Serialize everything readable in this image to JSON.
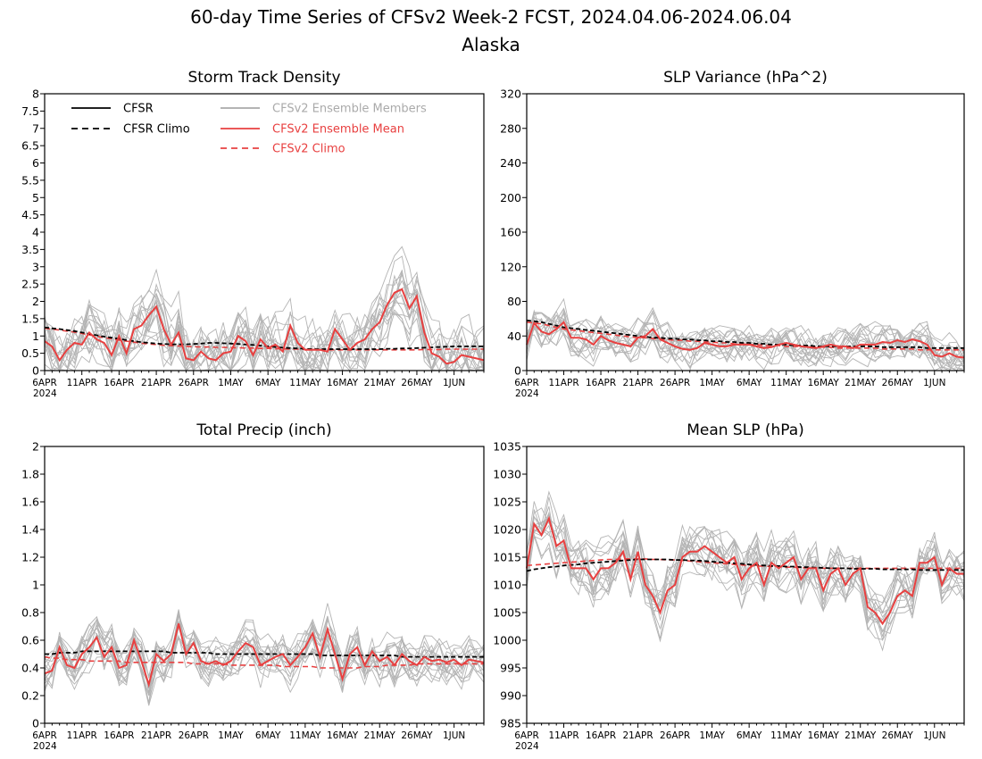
{
  "page": {
    "title": "60-day Time Series of CFSv2 Week-2 FCST, 2024.04.06-2024.06.04",
    "subtitle": "Alaska"
  },
  "legend": [
    {
      "label": "CFSR",
      "color": "#000000",
      "dash": false
    },
    {
      "label": "CFSR Climo",
      "color": "#000000",
      "dash": true
    },
    {
      "label": "CFSv2 Ensemble Members",
      "color": "#aaaaaa",
      "dash": false
    },
    {
      "label": "CFSv2 Ensemble Mean",
      "color": "#e84040",
      "dash": false
    },
    {
      "label": "CFSv2 Climo",
      "color": "#e84040",
      "dash": true
    }
  ],
  "colors": {
    "members": "#b4b4b4",
    "mean": "#e84040",
    "cfsr": "#000000"
  },
  "x_ticks": [
    "6APR",
    "11APR",
    "16APR",
    "21APR",
    "26APR",
    "1MAY",
    "6MAY",
    "11MAY",
    "16MAY",
    "21MAY",
    "26MAY",
    "1JUN"
  ],
  "year_label": "2024",
  "chart_data": [
    {
      "type": "line",
      "title": "Storm Track Density",
      "ylim": [
        0,
        8
      ],
      "yticks": [
        0,
        0.5,
        1,
        1.5,
        2,
        2.5,
        3,
        3.5,
        4,
        4.5,
        5,
        5.5,
        6,
        6.5,
        7,
        7.5,
        8
      ],
      "series": [
        {
          "name": "CFSv2 Ensemble Mean",
          "values": [
            0.85,
            0.7,
            0.3,
            0.6,
            0.8,
            0.75,
            1.1,
            0.9,
            0.8,
            0.45,
            1.0,
            0.5,
            1.2,
            1.3,
            1.6,
            1.85,
            1.2,
            0.75,
            1.1,
            0.35,
            0.3,
            0.55,
            0.35,
            0.3,
            0.5,
            0.55,
            1.0,
            0.85,
            0.45,
            0.9,
            0.65,
            0.75,
            0.55,
            1.3,
            0.8,
            0.6,
            0.6,
            0.6,
            0.55,
            1.2,
            0.9,
            0.6,
            0.8,
            0.9,
            1.2,
            1.4,
            1.9,
            2.25,
            2.35,
            1.8,
            2.15,
            1.1,
            0.5,
            0.4,
            0.2,
            0.25,
            0.45,
            0.4,
            0.35,
            0.3
          ]
        },
        {
          "name": "CFSR Climo",
          "values": [
            1.25,
            1.22,
            1.2,
            1.17,
            1.14,
            1.1,
            1.06,
            1.02,
            0.98,
            0.95,
            0.92,
            0.88,
            0.85,
            0.82,
            0.8,
            0.78,
            0.77,
            0.76,
            0.76,
            0.76,
            0.77,
            0.78,
            0.8,
            0.8,
            0.79,
            0.78,
            0.77,
            0.75,
            0.74,
            0.72,
            0.7,
            0.68,
            0.66,
            0.65,
            0.64,
            0.63,
            0.62,
            0.62,
            0.62,
            0.62,
            0.62,
            0.62,
            0.62,
            0.62,
            0.62,
            0.62,
            0.63,
            0.63,
            0.64,
            0.64,
            0.65,
            0.66,
            0.67,
            0.68,
            0.69,
            0.7,
            0.7,
            0.7,
            0.7,
            0.7
          ]
        },
        {
          "name": "CFSv2 Climo",
          "values": [
            1.22,
            1.2,
            1.17,
            1.14,
            1.11,
            1.07,
            1.03,
            0.99,
            0.95,
            0.92,
            0.88,
            0.85,
            0.82,
            0.79,
            0.77,
            0.75,
            0.73,
            0.72,
            0.71,
            0.7,
            0.69,
            0.68,
            0.68,
            0.67,
            0.67,
            0.66,
            0.66,
            0.65,
            0.65,
            0.64,
            0.64,
            0.63,
            0.63,
            0.62,
            0.62,
            0.61,
            0.61,
            0.6,
            0.6,
            0.6,
            0.6,
            0.6,
            0.6,
            0.6,
            0.6,
            0.6,
            0.6,
            0.6,
            0.6,
            0.6,
            0.6,
            0.61,
            0.61,
            0.61,
            0.62,
            0.62,
            0.62,
            0.62,
            0.62,
            0.62
          ]
        }
      ]
    },
    {
      "type": "line",
      "title": "SLP Variance (hPa^2)",
      "ylim": [
        0,
        320
      ],
      "yticks": [
        0,
        40,
        80,
        120,
        160,
        200,
        240,
        280,
        320
      ],
      "series": [
        {
          "name": "CFSv2 Ensemble Mean",
          "values": [
            30,
            55,
            45,
            42,
            48,
            56,
            38,
            38,
            36,
            30,
            40,
            35,
            32,
            30,
            28,
            38,
            40,
            48,
            36,
            32,
            28,
            25,
            24,
            26,
            32,
            30,
            28,
            28,
            30,
            30,
            30,
            28,
            26,
            27,
            30,
            32,
            30,
            28,
            27,
            26,
            28,
            30,
            28,
            28,
            26,
            30,
            30,
            30,
            33,
            32,
            35,
            33,
            36,
            34,
            30,
            18,
            16,
            20,
            16,
            15
          ]
        },
        {
          "name": "CFSR Climo",
          "values": [
            58,
            57,
            56,
            54,
            52,
            50,
            49,
            48,
            47,
            46,
            45,
            44,
            43,
            42,
            41,
            40,
            39,
            38,
            38,
            37,
            37,
            36,
            36,
            35,
            35,
            34,
            34,
            33,
            33,
            32,
            32,
            31,
            31,
            30,
            30,
            30,
            29,
            29,
            29,
            28,
            28,
            28,
            28,
            28,
            28,
            28,
            28,
            28,
            27,
            27,
            27,
            27,
            27,
            27,
            26,
            26,
            26,
            26,
            26,
            26
          ]
        },
        {
          "name": "CFSv2 Climo",
          "values": [
            56,
            55,
            54,
            52,
            50,
            48,
            47,
            46,
            45,
            44,
            43,
            42,
            41,
            40,
            39,
            38,
            38,
            37,
            36,
            36,
            35,
            35,
            34,
            34,
            33,
            33,
            32,
            32,
            31,
            31,
            30,
            30,
            29,
            29,
            29,
            28,
            28,
            28,
            27,
            27,
            27,
            27,
            26,
            26,
            26,
            26,
            26,
            26,
            25,
            25,
            25,
            25,
            25,
            24,
            24,
            24,
            24,
            24,
            24,
            24
          ]
        }
      ]
    },
    {
      "type": "line",
      "title": "Total Precip (inch)",
      "ylim": [
        0,
        2
      ],
      "yticks": [
        0,
        0.2,
        0.4,
        0.6,
        0.8,
        1,
        1.2,
        1.4,
        1.6,
        1.8,
        2
      ],
      "series": [
        {
          "name": "CFSv2 Ensemble Mean",
          "values": [
            0.36,
            0.38,
            0.55,
            0.42,
            0.4,
            0.5,
            0.55,
            0.62,
            0.48,
            0.55,
            0.4,
            0.42,
            0.6,
            0.45,
            0.28,
            0.5,
            0.45,
            0.5,
            0.72,
            0.5,
            0.58,
            0.45,
            0.43,
            0.45,
            0.42,
            0.45,
            0.52,
            0.58,
            0.55,
            0.42,
            0.45,
            0.48,
            0.5,
            0.42,
            0.48,
            0.55,
            0.65,
            0.48,
            0.68,
            0.5,
            0.32,
            0.5,
            0.55,
            0.42,
            0.52,
            0.45,
            0.48,
            0.42,
            0.5,
            0.45,
            0.42,
            0.48,
            0.45,
            0.46,
            0.44,
            0.46,
            0.42,
            0.46,
            0.45,
            0.44
          ]
        },
        {
          "name": "CFSR Climo",
          "values": [
            0.5,
            0.5,
            0.51,
            0.51,
            0.51,
            0.52,
            0.52,
            0.52,
            0.52,
            0.52,
            0.52,
            0.52,
            0.52,
            0.52,
            0.52,
            0.52,
            0.52,
            0.51,
            0.51,
            0.51,
            0.51,
            0.51,
            0.51,
            0.5,
            0.5,
            0.5,
            0.5,
            0.5,
            0.5,
            0.5,
            0.5,
            0.5,
            0.5,
            0.5,
            0.5,
            0.5,
            0.5,
            0.49,
            0.49,
            0.49,
            0.49,
            0.49,
            0.49,
            0.49,
            0.49,
            0.49,
            0.49,
            0.49,
            0.48,
            0.48,
            0.48,
            0.48,
            0.48,
            0.48,
            0.48,
            0.48,
            0.48,
            0.48,
            0.48,
            0.48
          ]
        },
        {
          "name": "CFSv2 Climo",
          "values": [
            0.48,
            0.47,
            0.47,
            0.46,
            0.46,
            0.46,
            0.45,
            0.45,
            0.45,
            0.45,
            0.45,
            0.44,
            0.44,
            0.44,
            0.44,
            0.44,
            0.44,
            0.44,
            0.44,
            0.44,
            0.43,
            0.43,
            0.43,
            0.43,
            0.43,
            0.42,
            0.42,
            0.42,
            0.42,
            0.42,
            0.42,
            0.42,
            0.41,
            0.41,
            0.41,
            0.41,
            0.41,
            0.4,
            0.4,
            0.4,
            0.4,
            0.4,
            0.4,
            0.41,
            0.41,
            0.41,
            0.42,
            0.42,
            0.42,
            0.42,
            0.43,
            0.43,
            0.43,
            0.43,
            0.43,
            0.43,
            0.43,
            0.43,
            0.43,
            0.43
          ]
        }
      ]
    },
    {
      "type": "line",
      "title": "Mean SLP (hPa)",
      "ylim": [
        985,
        1035
      ],
      "yticks": [
        985,
        990,
        995,
        1000,
        1005,
        1010,
        1015,
        1020,
        1025,
        1030,
        1035
      ],
      "series": [
        {
          "name": "CFSv2 Ensemble Mean",
          "values": [
            1013,
            1021,
            1019,
            1022,
            1017,
            1018,
            1013,
            1013,
            1013,
            1011,
            1013,
            1013,
            1014,
            1016,
            1011,
            1016,
            1010,
            1008,
            1005,
            1009,
            1010,
            1015,
            1016,
            1016,
            1017,
            1016,
            1015,
            1014,
            1015,
            1011,
            1013,
            1014,
            1010,
            1014,
            1013,
            1014,
            1015,
            1011,
            1013,
            1013,
            1009,
            1012,
            1013,
            1010,
            1012,
            1013,
            1006,
            1005,
            1003,
            1005,
            1008,
            1009,
            1008,
            1014,
            1014,
            1015,
            1010,
            1013,
            1012,
            1012
          ]
        },
        {
          "name": "CFSR Climo",
          "values": [
            1012.5,
            1012.8,
            1013,
            1013.2,
            1013.3,
            1013.5,
            1013.6,
            1013.7,
            1013.9,
            1014,
            1014.1,
            1014.2,
            1014.3,
            1014.4,
            1014.5,
            1014.6,
            1014.6,
            1014.6,
            1014.6,
            1014.6,
            1014.5,
            1014.5,
            1014.4,
            1014.4,
            1014.3,
            1014.2,
            1014.1,
            1014,
            1013.9,
            1013.8,
            1013.7,
            1013.6,
            1013.5,
            1013.4,
            1013.4,
            1013.3,
            1013.3,
            1013.2,
            1013.2,
            1013.1,
            1013.1,
            1013,
            1013,
            1013,
            1012.9,
            1012.9,
            1012.9,
            1012.9,
            1012.8,
            1012.8,
            1012.8,
            1012.8,
            1012.8,
            1012.7,
            1012.7,
            1012.7,
            1012.7,
            1012.7,
            1012.7,
            1012.7
          ]
        },
        {
          "name": "CFSv2 Climo",
          "values": [
            1013.5,
            1013.6,
            1013.7,
            1013.8,
            1013.9,
            1014,
            1014.1,
            1014.2,
            1014.3,
            1014.4,
            1014.5,
            1014.6,
            1014.6,
            1014.7,
            1014.7,
            1014.7,
            1014.7,
            1014.6,
            1014.6,
            1014.5,
            1014.5,
            1014.4,
            1014.3,
            1014.2,
            1014.1,
            1014,
            1013.9,
            1013.8,
            1013.7,
            1013.6,
            1013.5,
            1013.4,
            1013.4,
            1013.3,
            1013.3,
            1013.2,
            1013.2,
            1013.1,
            1013.1,
            1013.1,
            1013,
            1013,
            1013,
            1013,
            1013,
            1013,
            1013,
            1013,
            1013,
            1013,
            1013,
            1013,
            1013,
            1013,
            1013,
            1013,
            1013,
            1013,
            1013,
            1013
          ]
        }
      ]
    }
  ]
}
